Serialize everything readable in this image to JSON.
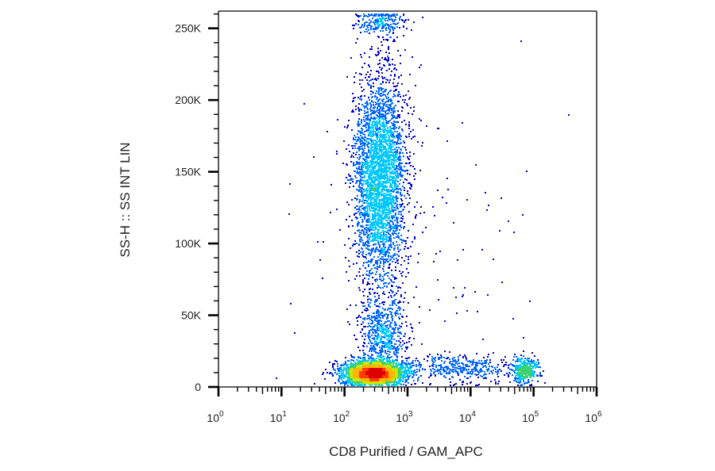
{
  "chart_data": {
    "type": "scatter",
    "style": "flow-cytometry-density-dot-plot",
    "xlabel": "CD8 Purified / GAM_APC",
    "ylabel": "SS-H :: SS INT LIN",
    "x_scale": "log",
    "x_range_log10": [
      0,
      6
    ],
    "x_ticks": [
      {
        "base": "10",
        "exp": "0"
      },
      {
        "base": "10",
        "exp": "1"
      },
      {
        "base": "10",
        "exp": "2"
      },
      {
        "base": "10",
        "exp": "3"
      },
      {
        "base": "10",
        "exp": "4"
      },
      {
        "base": "10",
        "exp": "5"
      },
      {
        "base": "10",
        "exp": "6"
      }
    ],
    "y_scale": "linear",
    "ylim": [
      0,
      262000
    ],
    "y_ticks": [
      {
        "value": 0,
        "label": "0"
      },
      {
        "value": 50000,
        "label": "50K"
      },
      {
        "value": 100000,
        "label": "100K"
      },
      {
        "value": 150000,
        "label": "150K"
      },
      {
        "value": 200000,
        "label": "200K"
      },
      {
        "value": 250000,
        "label": "250K"
      }
    ],
    "colormap": [
      "#0000c8",
      "#0064ff",
      "#00c8ff",
      "#3cd26e",
      "#c8e600",
      "#ffb400",
      "#ff3c00",
      "#dc0000"
    ],
    "populations": [
      {
        "log_x_center": 2.45,
        "y_center": 10000,
        "log_x_sd": 0.24,
        "y_sd": 4200,
        "weight": 3000
      },
      {
        "log_x_center": 2.55,
        "y_center": 145000,
        "log_x_sd": 0.2,
        "y_sd": 38000,
        "weight": 3400
      },
      {
        "log_x_center": 2.6,
        "y_center": 36000,
        "log_x_sd": 0.18,
        "y_sd": 14000,
        "weight": 650
      },
      {
        "log_x_center": 4.85,
        "y_center": 12000,
        "log_x_sd": 0.1,
        "y_sd": 4500,
        "weight": 380
      },
      {
        "log_x_center": 3.8,
        "y_center": 14000,
        "log_x_sd": 0.45,
        "y_sd": 4500,
        "weight": 420
      },
      {
        "log_x_center": 2.55,
        "y_center": 255000,
        "log_x_sd": 0.2,
        "y_sd": 5000,
        "weight": 250
      },
      {
        "log_x_center": 3.2,
        "y_center": 80000,
        "log_x_sd": 1.0,
        "y_sd": 70000,
        "weight": 200
      }
    ]
  }
}
